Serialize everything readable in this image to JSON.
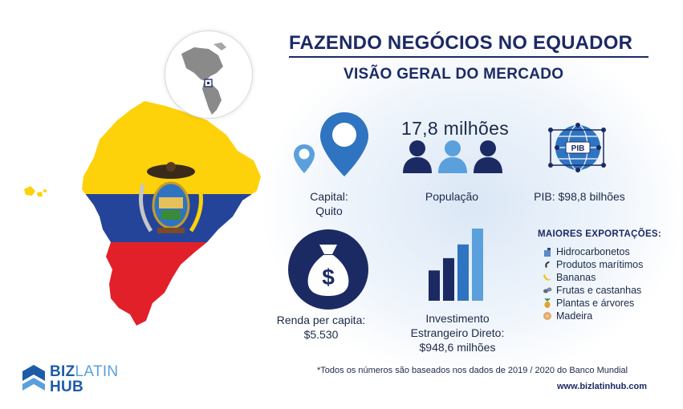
{
  "header": {
    "title": "FAZENDO NEGÓCIOS NO EQUADOR",
    "subtitle": "VISÃO GERAL DO MERCADO"
  },
  "stats": {
    "capital": {
      "line1": "Capital:",
      "line2": "Quito",
      "icon": "map-pin-icon"
    },
    "population": {
      "value": "17,8 milhões",
      "label": "População",
      "icon": "people-icon"
    },
    "gdp": {
      "badge": "PIB",
      "label": "PIB: $98,8 bilhões",
      "icon": "globe-network-icon"
    },
    "income": {
      "line1": "Renda per capita:",
      "line2": "$5.530",
      "icon": "money-bag-icon"
    },
    "fdi": {
      "line1": "Investimento",
      "line2": "Estrangeiro Direto:",
      "line3": "$948,6 milhões",
      "icon": "bar-growth-icon",
      "levels": [
        0.42,
        0.59,
        0.78,
        1.0
      ]
    }
  },
  "exports": {
    "title": "MAIORES EXPORTAÇÕES:",
    "items": [
      {
        "label": "Hidrocarbonetos",
        "icon": "oil-icon"
      },
      {
        "label": "Produtos marítimos",
        "icon": "shrimp-icon"
      },
      {
        "label": "Bananas",
        "icon": "banana-icon"
      },
      {
        "label": "Frutas e castanhas",
        "icon": "nuts-icon"
      },
      {
        "label": "Plantas e árvores",
        "icon": "plant-icon"
      },
      {
        "label": "Madeira",
        "icon": "wood-icon"
      }
    ]
  },
  "footer": {
    "note": "*Todos os números são baseados nos dados de 2019 / 2020 do Banco Mundial",
    "url": "www.bizlatinhub.com"
  },
  "brand": {
    "line1_a": "BIZ",
    "line1_b": "LATIN",
    "line2": "HUB"
  },
  "colors": {
    "navy": "#1c2a64",
    "blue": "#2f74c0",
    "light_blue": "#5aa0dc",
    "flag_yellow": "#fdd20a",
    "flag_blue": "#24449a",
    "flag_red": "#e2202a"
  }
}
